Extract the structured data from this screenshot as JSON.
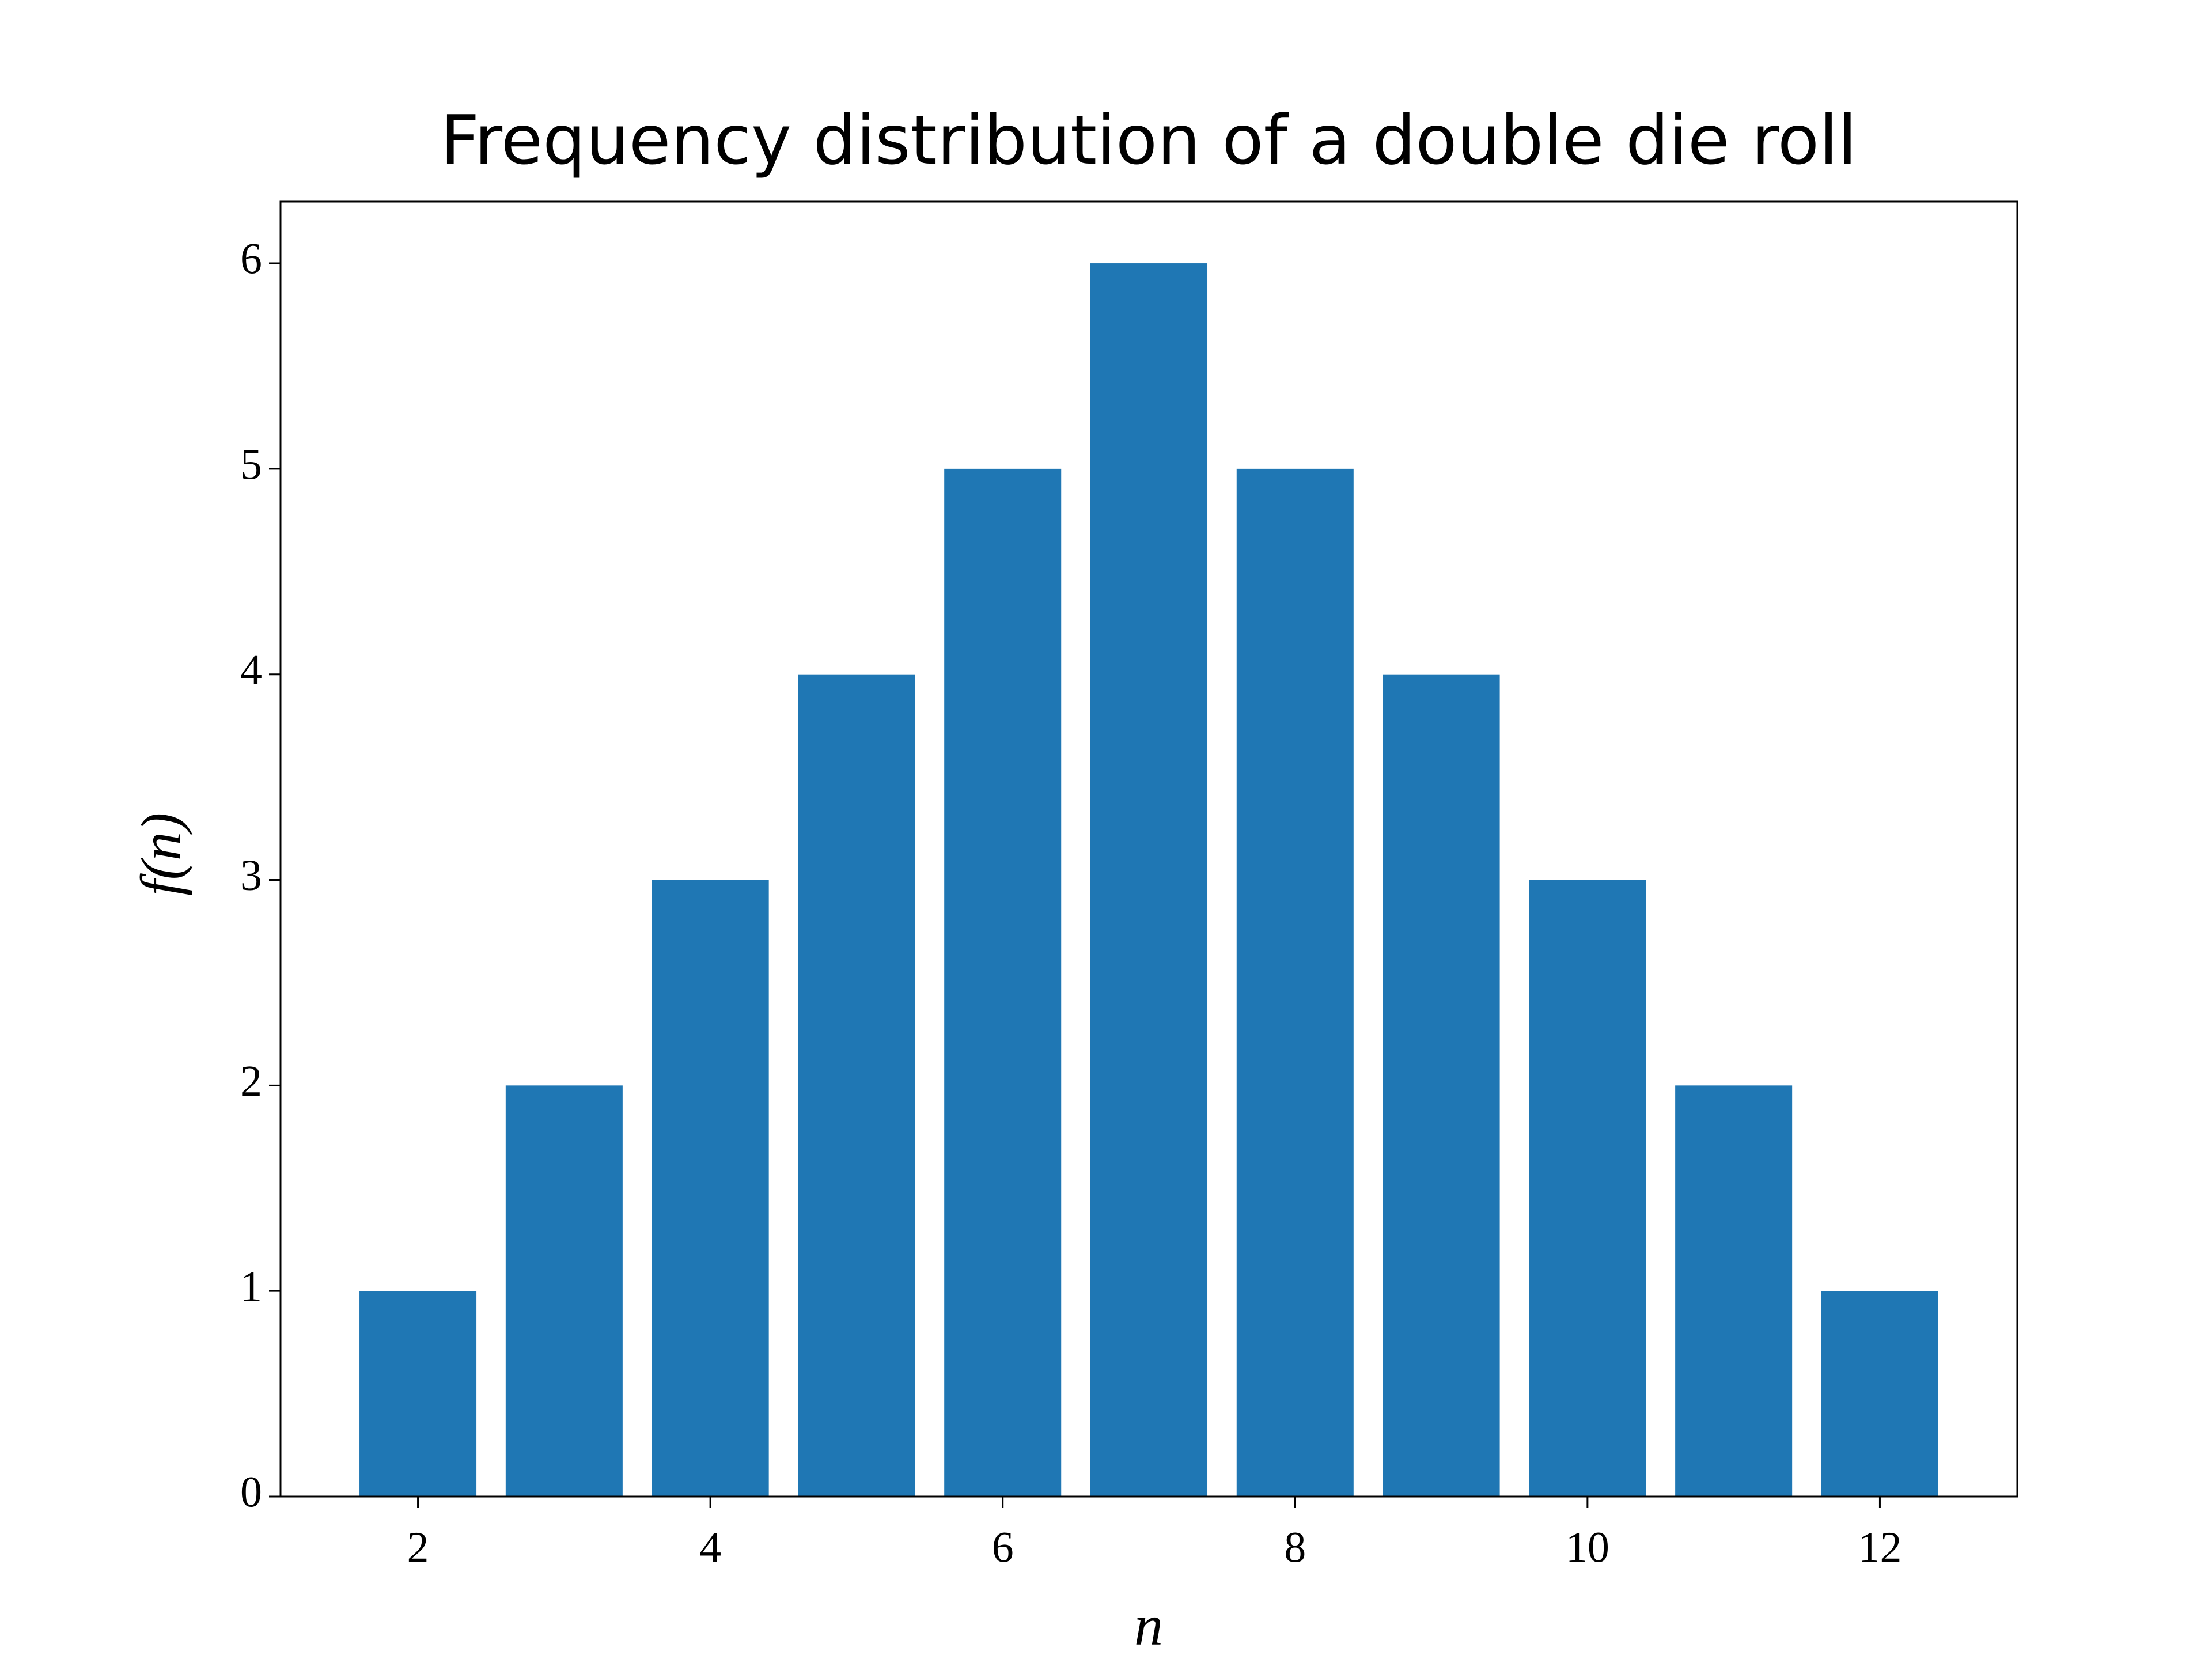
{
  "chart_data": {
    "type": "bar",
    "title": "Frequency distribution of a double die roll",
    "x_label": "n",
    "y_label": "f(n)",
    "x": [
      2,
      3,
      4,
      5,
      6,
      7,
      8,
      9,
      10,
      11,
      12
    ],
    "values": [
      1,
      2,
      3,
      4,
      5,
      6,
      5,
      4,
      3,
      2,
      1
    ],
    "color": "#1f77b4",
    "bar_width": 0.8,
    "xlim": [
      1.06,
      12.94
    ],
    "xticks": [
      2,
      4,
      6,
      8,
      10,
      12
    ],
    "ylim": [
      0,
      6.3
    ],
    "yticks": [
      0,
      1,
      2,
      3,
      4,
      5,
      6
    ],
    "grid": false
  }
}
